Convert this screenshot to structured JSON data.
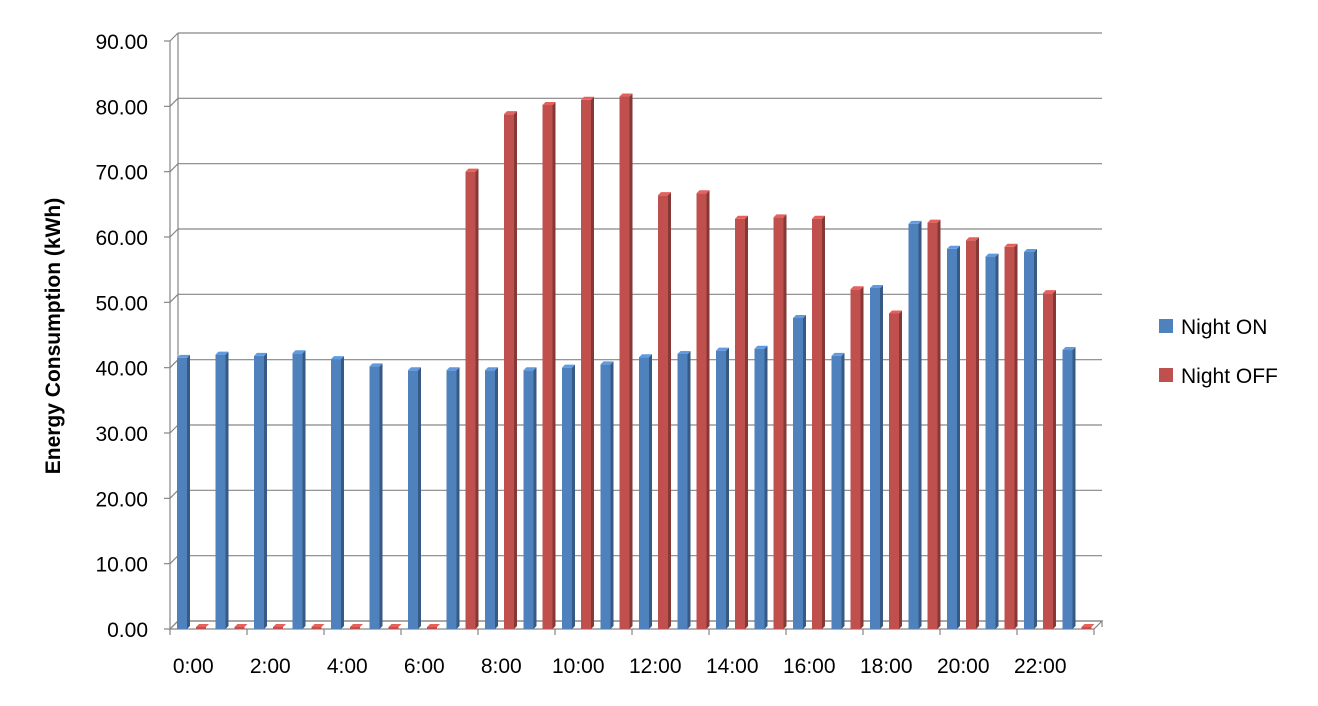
{
  "chart_data": {
    "type": "bar",
    "title": "",
    "xlabel": "",
    "ylabel": "Energy Consumption (kWh)",
    "ylim": [
      0,
      90
    ],
    "yticks": [
      "0.00",
      "10.00",
      "20.00",
      "30.00",
      "40.00",
      "50.00",
      "60.00",
      "70.00",
      "80.00",
      "90.00"
    ],
    "categories": [
      "0:00",
      "1:00",
      "2:00",
      "3:00",
      "4:00",
      "5:00",
      "6:00",
      "7:00",
      "8:00",
      "9:00",
      "10:00",
      "11:00",
      "12:00",
      "13:00",
      "14:00",
      "15:00",
      "16:00",
      "17:00",
      "18:00",
      "19:00",
      "20:00",
      "21:00",
      "22:00",
      "23:00"
    ],
    "xtick_labels": [
      "0:00",
      "2:00",
      "4:00",
      "6:00",
      "8:00",
      "10:00",
      "12:00",
      "14:00",
      "16:00",
      "18:00",
      "20:00",
      "22:00"
    ],
    "series": [
      {
        "name": "Night ON",
        "color": "#4F81BD",
        "values": [
          41.5,
          42.0,
          41.8,
          42.2,
          41.3,
          40.2,
          39.6,
          39.6,
          39.6,
          39.6,
          40.0,
          40.5,
          41.6,
          42.1,
          42.6,
          42.9,
          47.6,
          41.8,
          52.2,
          62.0,
          58.2,
          57.0,
          57.7,
          42.7
        ]
      },
      {
        "name": "Night OFF",
        "color": "#C0504D",
        "values": [
          0,
          0,
          0,
          0,
          0,
          0,
          0,
          70.0,
          78.8,
          80.2,
          81.0,
          81.5,
          66.4,
          66.7,
          62.8,
          63.0,
          62.8,
          52.0,
          48.3,
          62.2,
          59.5,
          58.5,
          51.4,
          0
        ]
      }
    ],
    "grid": true,
    "legend_position": "right"
  }
}
